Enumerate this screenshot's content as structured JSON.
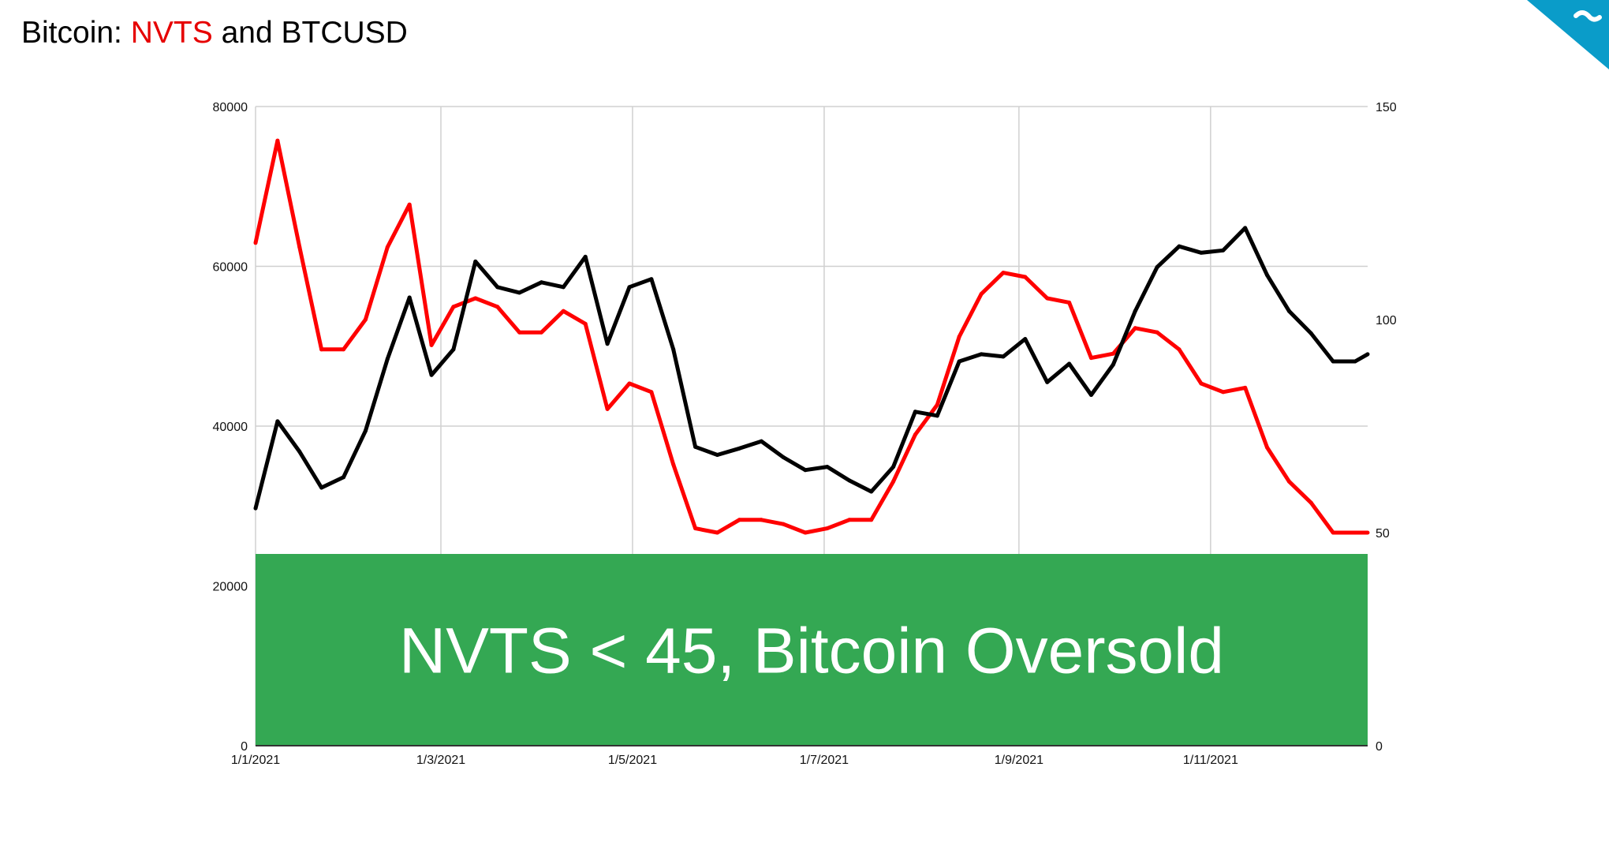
{
  "title": {
    "prefix": "Bitcoin: ",
    "highlight": "NVTS",
    "suffix": " and BTCUSD",
    "highlight_color": "#e60000"
  },
  "logo": {
    "icon": "brand-corner-logo",
    "color": "#0a9cc9"
  },
  "chart_data": {
    "type": "line",
    "title": "Bitcoin: NVTS and BTCUSD",
    "x_ticks": [
      "1/1/2021",
      "1/3/2021",
      "1/5/2021",
      "1/7/2021",
      "1/9/2021",
      "1/11/2021"
    ],
    "x_range": [
      "1/1/2021",
      "21/12/2021"
    ],
    "y_left": {
      "range": [
        0,
        80000
      ],
      "ticks": [
        "0",
        "20000",
        "40000",
        "60000",
        "80000"
      ]
    },
    "y_right": {
      "range": [
        0,
        150
      ],
      "ticks": [
        "0",
        "50",
        "100",
        "150"
      ]
    },
    "grid": true,
    "x": [
      "1/1/2021",
      "8/1/2021",
      "15/1/2021",
      "22/1/2021",
      "29/1/2021",
      "5/2/2021",
      "12/2/2021",
      "19/2/2021",
      "26/2/2021",
      "5/3/2021",
      "12/3/2021",
      "19/3/2021",
      "26/3/2021",
      "2/4/2021",
      "9/4/2021",
      "16/4/2021",
      "23/4/2021",
      "30/4/2021",
      "7/5/2021",
      "14/5/2021",
      "21/5/2021",
      "28/5/2021",
      "4/6/2021",
      "11/6/2021",
      "18/6/2021",
      "25/6/2021",
      "2/7/2021",
      "9/7/2021",
      "16/7/2021",
      "23/7/2021",
      "30/7/2021",
      "6/8/2021",
      "13/8/2021",
      "20/8/2021",
      "27/8/2021",
      "3/9/2021",
      "10/9/2021",
      "17/9/2021",
      "24/9/2021",
      "1/10/2021",
      "8/10/2021",
      "15/10/2021",
      "22/10/2021",
      "29/10/2021",
      "5/11/2021",
      "12/11/2021",
      "19/11/2021",
      "26/11/2021",
      "3/12/2021",
      "10/12/2021",
      "17/12/2021",
      "21/12/2021"
    ],
    "series": [
      {
        "name": "NVTS",
        "axis": "right",
        "color": "#ff0000",
        "values": [
          118,
          142,
          117,
          93,
          93,
          100,
          117,
          127,
          94,
          103,
          105,
          103,
          97,
          97,
          102,
          99,
          79,
          85,
          83,
          66,
          51,
          50,
          53,
          53,
          52,
          50,
          51,
          53,
          53,
          62,
          73,
          80,
          96,
          106,
          111,
          110,
          105,
          104,
          91,
          92,
          98,
          97,
          93,
          85,
          83,
          84,
          70,
          62,
          57,
          50,
          50,
          50
        ]
      },
      {
        "name": "BTCUSD",
        "axis": "left",
        "color": "#000000",
        "values": [
          29700,
          40600,
          36800,
          32300,
          33600,
          39400,
          48400,
          56100,
          46400,
          49600,
          60600,
          57400,
          56700,
          58000,
          57400,
          61200,
          50300,
          57400,
          58400,
          49600,
          37400,
          36400,
          37200,
          38100,
          36100,
          34500,
          34900,
          33200,
          31800,
          34900,
          41800,
          41300,
          48100,
          49000,
          48700,
          50900,
          45500,
          47800,
          43900,
          47700,
          54400,
          59900,
          62500,
          61700,
          62000,
          64800,
          58900,
          54400,
          51600,
          48100,
          48100,
          49000
        ]
      }
    ],
    "annotation": {
      "text": "NVTS < 45, Bitcoin Oversold",
      "y_right_range": [
        0,
        45
      ],
      "color": "#34a853"
    }
  }
}
